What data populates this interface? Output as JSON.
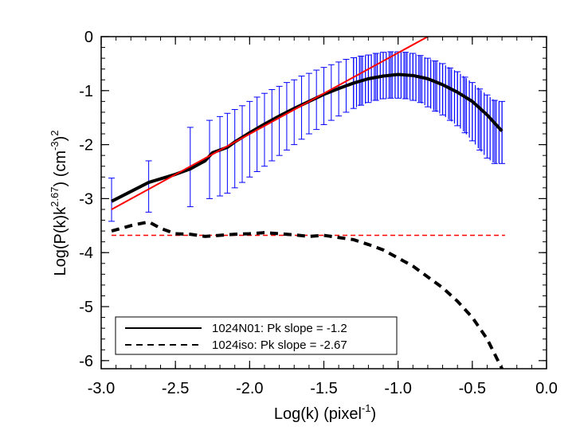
{
  "chart_data": {
    "type": "line",
    "title": "",
    "xlabel": {
      "prefix": "Log(k) (pixel",
      "sup": "-1",
      "suffix": ")"
    },
    "ylabel": {
      "a": "Log(P(k)k",
      "sup1": "2.67",
      "b": ") (cm",
      "sup2": "-3",
      "c": ")",
      "sup3": "2"
    },
    "xlim": [
      -3.0,
      0.0
    ],
    "ylim": [
      -6.15,
      0.0
    ],
    "xticks": [
      -3.0,
      -2.5,
      -2.0,
      -1.5,
      -1.0,
      -0.5,
      0.0
    ],
    "xtick_labels": [
      "-3.0",
      "-2.5",
      "-2.0",
      "-1.5",
      "-1.0",
      "-0.5",
      "0.0"
    ],
    "yticks": [
      0,
      -1,
      -2,
      -3,
      -4,
      -5,
      -6
    ],
    "ytick_labels": [
      "0",
      "-1",
      "-2",
      "-3",
      "-4",
      "-5",
      "-6"
    ],
    "grid": false,
    "legend_position": "bottom-left",
    "colors": {
      "data": "#000000",
      "errorbars": "#0000ff",
      "fit": "#ff0000",
      "ref": "#ff0000"
    },
    "series": [
      {
        "name": "1024N01: Pk slope = -1.2",
        "style": "solid",
        "x": [
          -2.93,
          -2.68,
          -2.5,
          -2.4,
          -2.3,
          -2.25,
          -2.2,
          -2.15,
          -2.1,
          -2.0,
          -1.9,
          -1.8,
          -1.7,
          -1.6,
          -1.5,
          -1.4,
          -1.3,
          -1.2,
          -1.1,
          -1.0,
          -0.9,
          -0.8,
          -0.7,
          -0.6,
          -0.5,
          -0.4,
          -0.3
        ],
        "y": [
          -3.05,
          -2.7,
          -2.55,
          -2.45,
          -2.3,
          -2.15,
          -2.1,
          -2.05,
          -1.95,
          -1.78,
          -1.62,
          -1.47,
          -1.33,
          -1.2,
          -1.07,
          -0.96,
          -0.86,
          -0.78,
          -0.73,
          -0.7,
          -0.72,
          -0.78,
          -0.89,
          -1.03,
          -1.2,
          -1.45,
          -1.75
        ],
        "err_x": [
          -2.93,
          -2.68,
          -2.4,
          -2.27,
          -2.2,
          -2.15,
          -2.1,
          -2.05,
          -2.0,
          -1.95,
          -1.9,
          -1.85,
          -1.8,
          -1.75,
          -1.7,
          -1.65,
          -1.6,
          -1.55,
          -1.5,
          -1.45,
          -1.4,
          -1.35,
          -1.3,
          -1.25,
          -1.2,
          -1.15,
          -1.1,
          -1.05,
          -1.0,
          -0.95,
          -0.9,
          -0.85,
          -0.8,
          -0.75,
          -0.7,
          -0.65,
          -0.6,
          -0.55,
          -0.5,
          -0.45,
          -0.4,
          -0.35,
          -0.3
        ],
        "err_low": [
          -3.42,
          -3.25,
          -3.15,
          -3.0,
          -2.95,
          -2.9,
          -2.8,
          -2.7,
          -2.6,
          -2.5,
          -2.4,
          -2.3,
          -2.2,
          -2.1,
          -2.0,
          -1.9,
          -1.8,
          -1.72,
          -1.63,
          -1.55,
          -1.47,
          -1.4,
          -1.33,
          -1.27,
          -1.22,
          -1.18,
          -1.15,
          -1.14,
          -1.14,
          -1.15,
          -1.18,
          -1.22,
          -1.3,
          -1.38,
          -1.45,
          -1.55,
          -1.65,
          -1.78,
          -1.93,
          -2.1,
          -2.25,
          -2.35,
          -2.35
        ],
        "err_high": [
          -2.62,
          -2.3,
          -1.68,
          -1.55,
          -1.48,
          -1.42,
          -1.35,
          -1.28,
          -1.2,
          -1.12,
          -1.05,
          -0.98,
          -0.92,
          -0.85,
          -0.8,
          -0.73,
          -0.68,
          -0.62,
          -0.57,
          -0.52,
          -0.47,
          -0.42,
          -0.39,
          -0.36,
          -0.34,
          -0.31,
          -0.29,
          -0.28,
          -0.28,
          -0.29,
          -0.31,
          -0.35,
          -0.4,
          -0.45,
          -0.5,
          -0.58,
          -0.65,
          -0.75,
          -0.85,
          -0.97,
          -1.08,
          -1.18,
          -1.2
        ]
      },
      {
        "name": "1024iso: Pk slope = -2.67",
        "style": "dashed",
        "x": [
          -2.93,
          -2.8,
          -2.68,
          -2.6,
          -2.5,
          -2.4,
          -2.3,
          -2.2,
          -2.1,
          -2.0,
          -1.9,
          -1.8,
          -1.7,
          -1.6,
          -1.5,
          -1.4,
          -1.3,
          -1.2,
          -1.1,
          -1.0,
          -0.9,
          -0.8,
          -0.7,
          -0.6,
          -0.5,
          -0.4,
          -0.3
        ],
        "y": [
          -3.6,
          -3.5,
          -3.43,
          -3.55,
          -3.65,
          -3.66,
          -3.7,
          -3.68,
          -3.66,
          -3.65,
          -3.63,
          -3.65,
          -3.67,
          -3.7,
          -3.68,
          -3.72,
          -3.76,
          -3.85,
          -3.95,
          -4.1,
          -4.25,
          -4.45,
          -4.65,
          -4.9,
          -5.2,
          -5.6,
          -6.15
        ]
      }
    ],
    "fit_line": {
      "x": [
        -2.93,
        -0.8
      ],
      "y": [
        -3.2,
        0.0
      ]
    },
    "reference_line": {
      "y": -3.68,
      "x": [
        -2.93,
        -0.28
      ]
    }
  }
}
